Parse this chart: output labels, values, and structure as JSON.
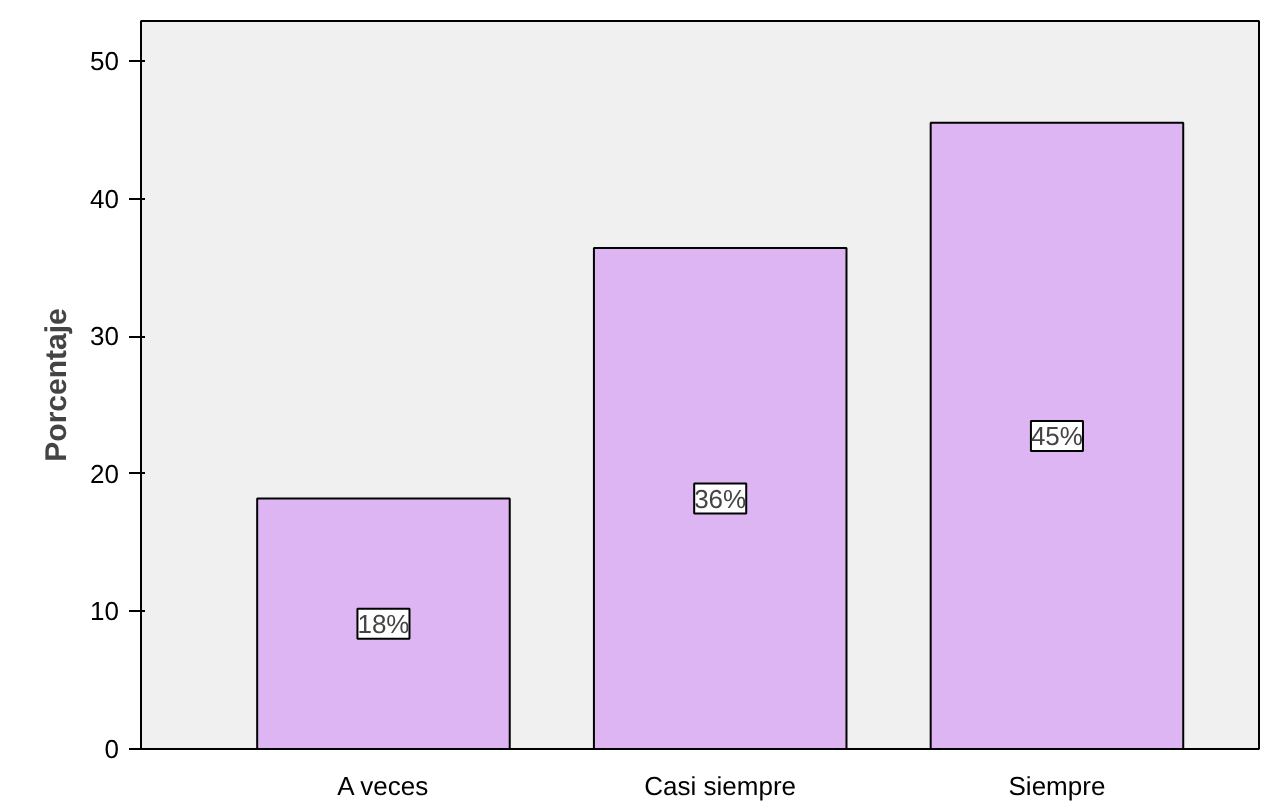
{
  "chart_data": {
    "type": "bar",
    "ylabel": "Porcentaje",
    "categories": [
      "A veces",
      "Casi siempre",
      "Siempre"
    ],
    "values": [
      18.2,
      36.4,
      45.5
    ],
    "value_labels": [
      "18%",
      "36%",
      "45%"
    ],
    "color": "#dcb5f2",
    "ylim": [
      0,
      52.9
    ],
    "yticks": [
      0,
      10,
      20,
      30,
      40,
      50
    ],
    "grid": false
  }
}
